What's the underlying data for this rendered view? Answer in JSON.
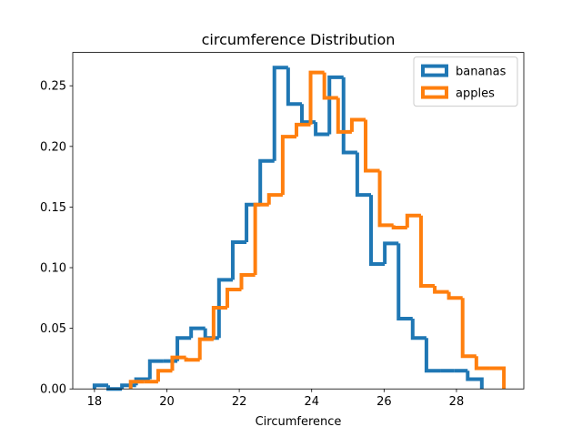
{
  "chart_data": {
    "type": "histogram",
    "title": "circumference Distribution",
    "xlabel": "Circumference",
    "xlim": [
      17.4,
      29.86
    ],
    "ylim": [
      0,
      0.2775
    ],
    "xticks": [
      18,
      20,
      22,
      24,
      26,
      28
    ],
    "yticks": [
      {
        "value": 0,
        "label": "0.00"
      },
      {
        "value": 0.05,
        "label": "0.05"
      },
      {
        "value": 0.1,
        "label": "0.10"
      },
      {
        "value": 0.15,
        "label": "0.15"
      },
      {
        "value": 0.2,
        "label": "0.20"
      },
      {
        "value": 0.25,
        "label": "0.25"
      }
    ],
    "legend": "upper right",
    "series": [
      {
        "name": "bananas",
        "color": "#1f77b4",
        "bins": [
          18.0,
          18.38,
          18.76,
          19.15,
          19.53,
          19.91,
          20.29,
          20.67,
          21.06,
          21.44,
          21.82,
          22.2,
          22.58,
          22.97,
          23.35,
          23.73,
          24.11,
          24.49,
          24.88,
          25.26,
          25.64,
          26.02,
          26.4,
          26.79,
          27.17,
          27.55,
          27.93,
          28.31,
          28.7
        ],
        "values": [
          0.003,
          0.0,
          0.003,
          0.008,
          0.023,
          0.023,
          0.042,
          0.05,
          0.042,
          0.09,
          0.121,
          0.152,
          0.188,
          0.265,
          0.235,
          0.22,
          0.21,
          0.257,
          0.195,
          0.16,
          0.103,
          0.12,
          0.058,
          0.042,
          0.015,
          0.015,
          0.015,
          0.008
        ]
      },
      {
        "name": "apples",
        "color": "#ff7f0e",
        "bins": [
          19.0,
          19.38,
          19.76,
          20.15,
          20.53,
          20.91,
          21.29,
          21.67,
          22.06,
          22.44,
          22.82,
          23.2,
          23.58,
          23.97,
          24.35,
          24.73,
          25.11,
          25.49,
          25.88,
          26.26,
          26.64,
          27.02,
          27.4,
          27.79,
          28.17,
          28.55,
          28.93,
          29.31
        ],
        "values": [
          0.006,
          0.006,
          0.015,
          0.026,
          0.024,
          0.041,
          0.067,
          0.082,
          0.094,
          0.152,
          0.16,
          0.208,
          0.218,
          0.261,
          0.24,
          0.212,
          0.222,
          0.18,
          0.135,
          0.133,
          0.143,
          0.085,
          0.08,
          0.075,
          0.027,
          0.017,
          0.017
        ]
      }
    ]
  }
}
